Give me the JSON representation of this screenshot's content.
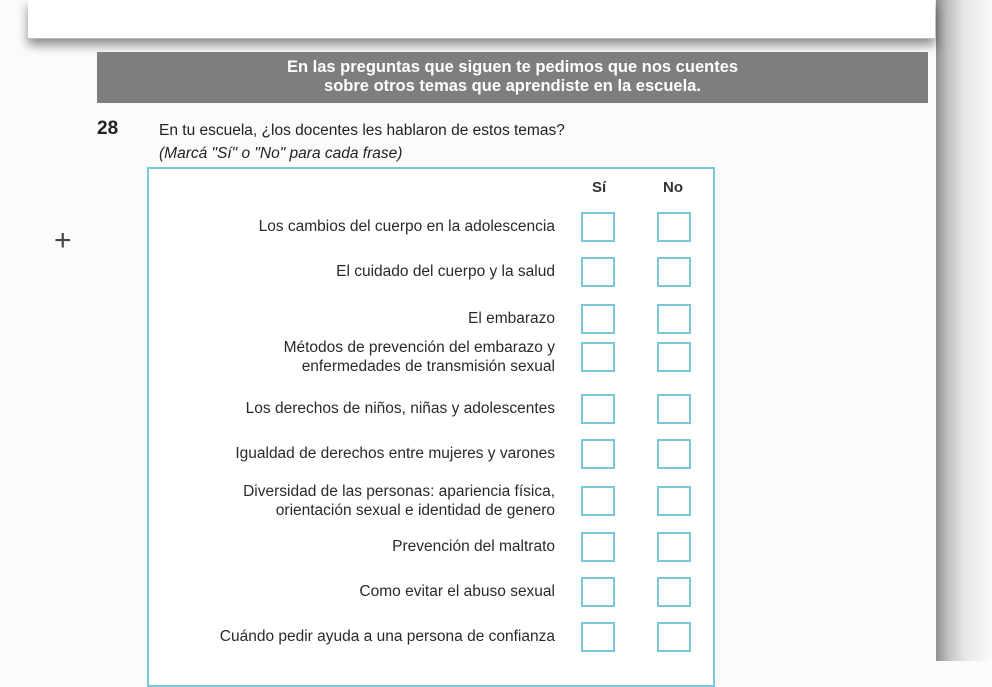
{
  "banner": {
    "line1": "En las preguntas que siguen te pedimos que nos cuentes",
    "line2": "sobre otros temas que aprendiste en la escuela."
  },
  "question": {
    "number": "28",
    "text": "En tu escuela, ¿los docentes les hablaron de estos temas?",
    "hint": "(Marcá \"Sí\" o \"No\" para cada frase)"
  },
  "table": {
    "col_yes": "Sí",
    "col_no": "No",
    "rows": [
      {
        "line1": "Los cambios del cuerpo en la adolescencia",
        "line2": ""
      },
      {
        "line1": "El cuidado del cuerpo y la salud",
        "line2": ""
      },
      {
        "line1": "El embarazo",
        "line2": ""
      },
      {
        "line1": "Métodos de prevención del embarazo y",
        "line2": "enfermedades de transmisión sexual"
      },
      {
        "line1": "Los derechos de niños, niñas y adolescentes",
        "line2": ""
      },
      {
        "line1": "Igualdad de derechos entre mujeres y varones",
        "line2": ""
      },
      {
        "line1": "Diversidad de las personas: apariencia física,",
        "line2": "orientación sexual e identidad de genero"
      },
      {
        "line1": "Prevención del maltrato",
        "line2": ""
      },
      {
        "line1": "Como evitar el abuso sexual",
        "line2": ""
      },
      {
        "line1": "Cuándo pedir ayuda a una persona de confianza",
        "line2": ""
      }
    ]
  },
  "colors": {
    "banner": "#7d7e80",
    "checkbox_border": "#7dc6d9"
  },
  "icons": {
    "plus": "plus-icon"
  }
}
